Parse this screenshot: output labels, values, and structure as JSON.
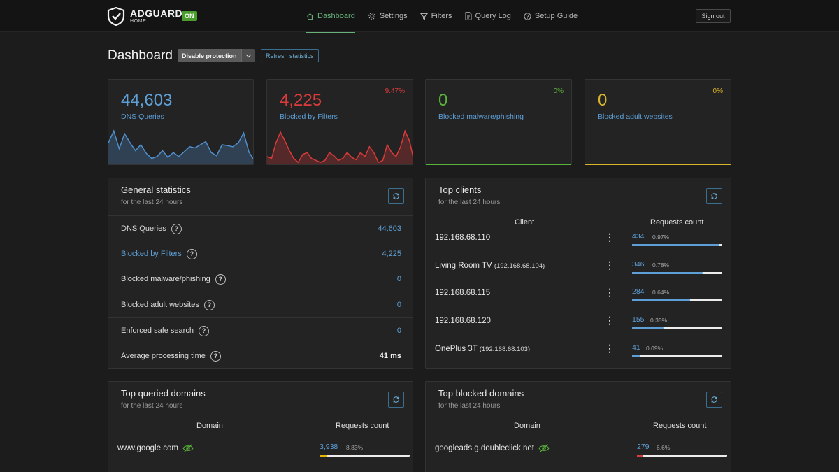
{
  "app": {
    "brand": "ADGUARD",
    "brand_sub": "HOME",
    "status_badge": "ON",
    "nav": [
      {
        "label": "Dashboard",
        "icon": "home-icon"
      },
      {
        "label": "Settings",
        "icon": "gear-icon"
      },
      {
        "label": "Filters",
        "icon": "filter-icon"
      },
      {
        "label": "Query Log",
        "icon": "document-icon"
      },
      {
        "label": "Setup Guide",
        "icon": "help-circle-icon"
      }
    ],
    "signout": "Sign out"
  },
  "page": {
    "title": "Dashboard",
    "disable_btn": "Disable protection",
    "refresh_btn": "Refresh statistics"
  },
  "stats": [
    {
      "value": "44,603",
      "label": "DNS Queries",
      "percent": "",
      "color": "#5d9fd6"
    },
    {
      "value": "4,225",
      "label": "Blocked by Filters",
      "percent": "9.47%",
      "color": "#d93b3b"
    },
    {
      "value": "0",
      "label": "Blocked malware/phishing",
      "percent": "0%",
      "color": "#5ab33a"
    },
    {
      "value": "0",
      "label": "Blocked adult websites",
      "percent": "0%",
      "color": "#d9b42a"
    }
  ],
  "general": {
    "title": "General statistics",
    "subtitle": "for the last 24 hours",
    "rows": [
      {
        "label": "DNS Queries",
        "value": "44,603"
      },
      {
        "label": "Blocked by Filters",
        "value": "4,225"
      },
      {
        "label": "Blocked malware/phishing",
        "value": "0"
      },
      {
        "label": "Blocked adult websites",
        "value": "0"
      },
      {
        "label": "Enforced safe search",
        "value": "0"
      },
      {
        "label": "Average processing time",
        "value": "41 ms"
      }
    ]
  },
  "clients": {
    "title": "Top clients",
    "subtitle": "for the last 24 hours",
    "col_client": "Client",
    "col_requests": "Requests count",
    "rows": [
      {
        "name": "192.168.68.110",
        "ip": "",
        "count": "434",
        "percent": "0.97%",
        "fill": 0.97
      },
      {
        "name": "Living Room TV",
        "ip": "(192.168.68.104)",
        "count": "346",
        "percent": "0.78%",
        "fill": 0.78
      },
      {
        "name": "192.168.68.115",
        "ip": "",
        "count": "284",
        "percent": "0.64%",
        "fill": 0.64
      },
      {
        "name": "192.168.68.120",
        "ip": "",
        "count": "155",
        "percent": "0.35%",
        "fill": 0.35
      },
      {
        "name": "OnePlus 3T",
        "ip": "(192.168.68.103)",
        "count": "41",
        "percent": "0.09%",
        "fill": 0.09
      }
    ]
  },
  "queried": {
    "title": "Top queried domains",
    "subtitle": "for the last 24 hours",
    "col_domain": "Domain",
    "col_requests": "Requests count",
    "rows": [
      {
        "domain": "www.google.com",
        "count": "3,938",
        "percent": "8.83%",
        "fill": 0.0883,
        "bar_color": "#e8b400"
      }
    ]
  },
  "blocked": {
    "title": "Top blocked domains",
    "subtitle": "for the last 24 hours",
    "col_domain": "Domain",
    "col_requests": "Requests count",
    "rows": [
      {
        "domain": "googleads.g.doubleclick.net",
        "count": "279",
        "percent": "6.6%",
        "fill": 0.066,
        "bar_color": "#d93b3b"
      }
    ]
  },
  "sparklines": {
    "dns": [
      0.55,
      0.85,
      0.4,
      0.78,
      0.55,
      0.35,
      0.5,
      0.28,
      0.15,
      0.2,
      0.35,
      0.18,
      0.3,
      0.2,
      0.32,
      0.45,
      0.42,
      0.5,
      0.58,
      0.3,
      0.22,
      0.5,
      0.48,
      0.45,
      0.55,
      0.8,
      0.3,
      0.1
    ],
    "blocked": [
      0.2,
      0.15,
      0.55,
      0.82,
      0.6,
      0.35,
      0.15,
      0.05,
      0.25,
      0.3,
      0.15,
      0.1,
      0.05,
      0.1,
      0.3,
      0.22,
      0.1,
      0.15,
      0.3,
      0.18,
      0.12,
      0.3,
      0.2,
      0.45,
      0.3,
      0.05,
      0.1,
      0.5,
      0.3,
      0.2,
      0.45,
      0.85,
      0.6,
      0.1
    ]
  }
}
